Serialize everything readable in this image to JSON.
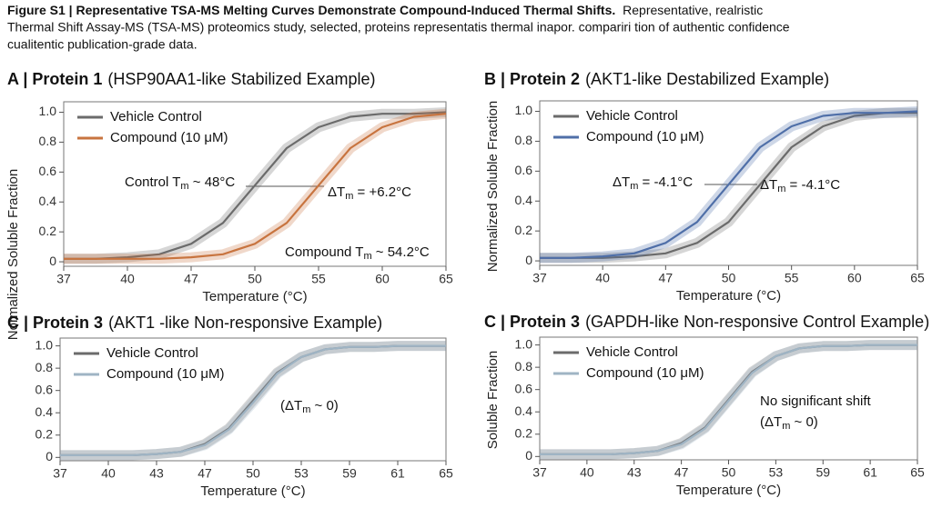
{
  "figure": {
    "caption_title": "Figure S1 | Representative TSA-MS Melting Curves Demonstrate Compound-Induced Thermal Shifts.",
    "caption_lines": [
      "Representative, realristic",
      "Thermal Shift Assay-MS (TSA-MS) proteomics study,  selected, proteins representatis thermal inapor. compariri tion of authentic confidence",
      "cualitentic publication-grade data."
    ]
  },
  "chart_data": [
    {
      "type": "line",
      "panel_label": "A | Protein 1",
      "title": "(HSP90AA1-like Stabilized Example)",
      "xlabel": "Temperature (°C)",
      "ylabel": "Normalized Soluble Fraction",
      "x": [
        0,
        0.5,
        1,
        1.5,
        2,
        2.5,
        3,
        3.5,
        4,
        4.5,
        5,
        5.5,
        6
      ],
      "xlim": [
        0,
        6
      ],
      "xticks": [
        {
          "value": 0,
          "label": "37"
        },
        {
          "value": 1,
          "label": "40"
        },
        {
          "value": 2,
          "label": "47"
        },
        {
          "value": 3,
          "label": "50"
        },
        {
          "value": 4,
          "label": "55"
        },
        {
          "value": 5,
          "label": "60"
        },
        {
          "value": 6,
          "label": "65"
        }
      ],
      "ylim": [
        -0.03,
        1.07
      ],
      "yticks": [
        0,
        0.2,
        0.4,
        0.6,
        0.8,
        {
          "value": 1,
          "label": "1.0"
        }
      ],
      "legend": "upper left",
      "series": [
        {
          "name": "Vehicle Control",
          "color": "#6b6b6b",
          "values": [
            0.02,
            0.02,
            0.03,
            0.05,
            0.12,
            0.26,
            0.51,
            0.76,
            0.9,
            0.97,
            0.99,
            0.99,
            1.0
          ]
        },
        {
          "name": "Compound (10 μM)",
          "color": "#c8743f",
          "values": [
            0.02,
            0.02,
            0.02,
            0.02,
            0.03,
            0.05,
            0.12,
            0.26,
            0.51,
            0.76,
            0.9,
            0.97,
            0.99
          ]
        }
      ],
      "annotations": [
        {
          "pre": "Control T",
          "sub": "m",
          "post": " ~ 48°C"
        },
        {
          "pre": "ΔT",
          "sub": "m",
          "post": " = +6.2°C"
        },
        {
          "pre": "Compound T",
          "sub": "m",
          "post": " ~ 54.2°C"
        }
      ]
    },
    {
      "type": "line",
      "panel_label": "B | Protein 2",
      "title": "(AKT1-like Destabilized Example)",
      "xlabel": "Temperature (°C)",
      "ylabel": "Normalized Soluble Fraction",
      "x": [
        0,
        0.5,
        1,
        1.5,
        2,
        2.5,
        3,
        3.5,
        4,
        4.5,
        5,
        5.5,
        6
      ],
      "xlim": [
        0,
        6
      ],
      "xticks": [
        {
          "value": 0,
          "label": "37"
        },
        {
          "value": 1,
          "label": "40"
        },
        {
          "value": 2,
          "label": "47"
        },
        {
          "value": 3,
          "label": "50"
        },
        {
          "value": 4,
          "label": "55"
        },
        {
          "value": 5,
          "label": "60"
        },
        {
          "value": 6,
          "label": "65"
        }
      ],
      "ylim": [
        -0.03,
        1.07
      ],
      "yticks": [
        0,
        0.2,
        0.4,
        0.6,
        0.8,
        {
          "value": 1,
          "label": "1.0"
        }
      ],
      "legend": "upper left",
      "series": [
        {
          "name": "Vehicle Control",
          "color": "#6b6b6b",
          "values": [
            0.02,
            0.02,
            0.02,
            0.03,
            0.05,
            0.12,
            0.26,
            0.51,
            0.76,
            0.9,
            0.97,
            0.99,
            0.99
          ]
        },
        {
          "name": "Compound (10 μM)",
          "color": "#4f6fa8",
          "values": [
            0.02,
            0.02,
            0.03,
            0.05,
            0.12,
            0.26,
            0.51,
            0.76,
            0.9,
            0.97,
            0.99,
            0.99,
            1.0
          ]
        }
      ],
      "annotations": [
        {
          "pre": "ΔT",
          "sub": "m",
          "post": " = -4.1°C"
        },
        {
          "pre": "ΔT",
          "sub": "m",
          "post": " = -4.1°C"
        }
      ]
    },
    {
      "type": "line",
      "panel_label": "C | Protein 3",
      "title": "(AKT1 -like Non-responsive Example)",
      "xlabel": "Temperature (°C)",
      "x": [
        0,
        0.5,
        1,
        1.5,
        2,
        2.5,
        3,
        3.5,
        4,
        4.5,
        5,
        5.5,
        6,
        6.5,
        7,
        7.5,
        8
      ],
      "xlim": [
        0,
        8
      ],
      "xticks": [
        {
          "value": 0,
          "label": "37"
        },
        {
          "value": 1,
          "label": "40"
        },
        {
          "value": 2,
          "label": "43"
        },
        {
          "value": 3,
          "label": "47"
        },
        {
          "value": 4,
          "label": "50"
        },
        {
          "value": 5,
          "label": "53"
        },
        {
          "value": 6,
          "label": "59"
        },
        {
          "value": 7,
          "label": "61"
        },
        {
          "value": 8,
          "label": "65"
        }
      ],
      "ylim": [
        -0.03,
        1.07
      ],
      "yticks": [
        0,
        0.2,
        0.4,
        0.6,
        0.8,
        {
          "value": 1,
          "label": "1.0"
        }
      ],
      "legend": "upper left",
      "series": [
        {
          "name": "Vehicle Control",
          "color": "#6b6b6b",
          "values": [
            0.02,
            0.02,
            0.02,
            0.02,
            0.03,
            0.05,
            0.12,
            0.26,
            0.51,
            0.76,
            0.9,
            0.97,
            0.99,
            0.99,
            1.0,
            1.0,
            1.0
          ]
        },
        {
          "name": "Compound (10 μM)",
          "color": "#9fb4c4",
          "values": [
            0.02,
            0.02,
            0.02,
            0.02,
            0.03,
            0.05,
            0.11,
            0.25,
            0.49,
            0.75,
            0.9,
            0.97,
            0.99,
            0.99,
            1.0,
            1.0,
            1.0
          ]
        }
      ],
      "annotations": [
        {
          "pre": "(ΔT",
          "sub": "m",
          "post": " ~ 0)"
        }
      ]
    },
    {
      "type": "line",
      "panel_label": "C | Protein 3",
      "title": "(GAPDH-like Non-responsive Control Example)",
      "xlabel": "Temperature (°C)",
      "ylabel": "Soluble Fraction",
      "x": [
        0,
        0.5,
        1,
        1.5,
        2,
        2.5,
        3,
        3.5,
        4,
        4.5,
        5,
        5.5,
        6,
        6.5,
        7,
        7.5,
        8
      ],
      "xlim": [
        0,
        8
      ],
      "xticks": [
        {
          "value": 0,
          "label": "37"
        },
        {
          "value": 1,
          "label": "40"
        },
        {
          "value": 2,
          "label": "43"
        },
        {
          "value": 3,
          "label": "47"
        },
        {
          "value": 4,
          "label": "50"
        },
        {
          "value": 5,
          "label": "53"
        },
        {
          "value": 6,
          "label": "59"
        },
        {
          "value": 7,
          "label": "61"
        },
        {
          "value": 8,
          "label": "65"
        }
      ],
      "ylim": [
        -0.03,
        1.07
      ],
      "yticks": [
        0,
        0.2,
        0.4,
        0.6,
        0.8,
        {
          "value": 1,
          "label": "1.0"
        }
      ],
      "legend": "upper left",
      "series": [
        {
          "name": "Vehicle Control",
          "color": "#6b6b6b",
          "values": [
            0.02,
            0.02,
            0.02,
            0.02,
            0.03,
            0.05,
            0.12,
            0.26,
            0.51,
            0.76,
            0.9,
            0.97,
            0.99,
            0.99,
            1.0,
            1.0,
            1.0
          ]
        },
        {
          "name": "Compound (10 μM)",
          "color": "#9fb4c4",
          "values": [
            0.02,
            0.02,
            0.02,
            0.02,
            0.03,
            0.05,
            0.11,
            0.25,
            0.5,
            0.75,
            0.9,
            0.97,
            0.99,
            0.99,
            1.0,
            1.0,
            1.0
          ]
        }
      ],
      "annotations": [
        {
          "pre": "No significant shift"
        },
        {
          "pre": "(ΔT",
          "sub": "m",
          "post": " ~ 0)"
        }
      ]
    }
  ]
}
